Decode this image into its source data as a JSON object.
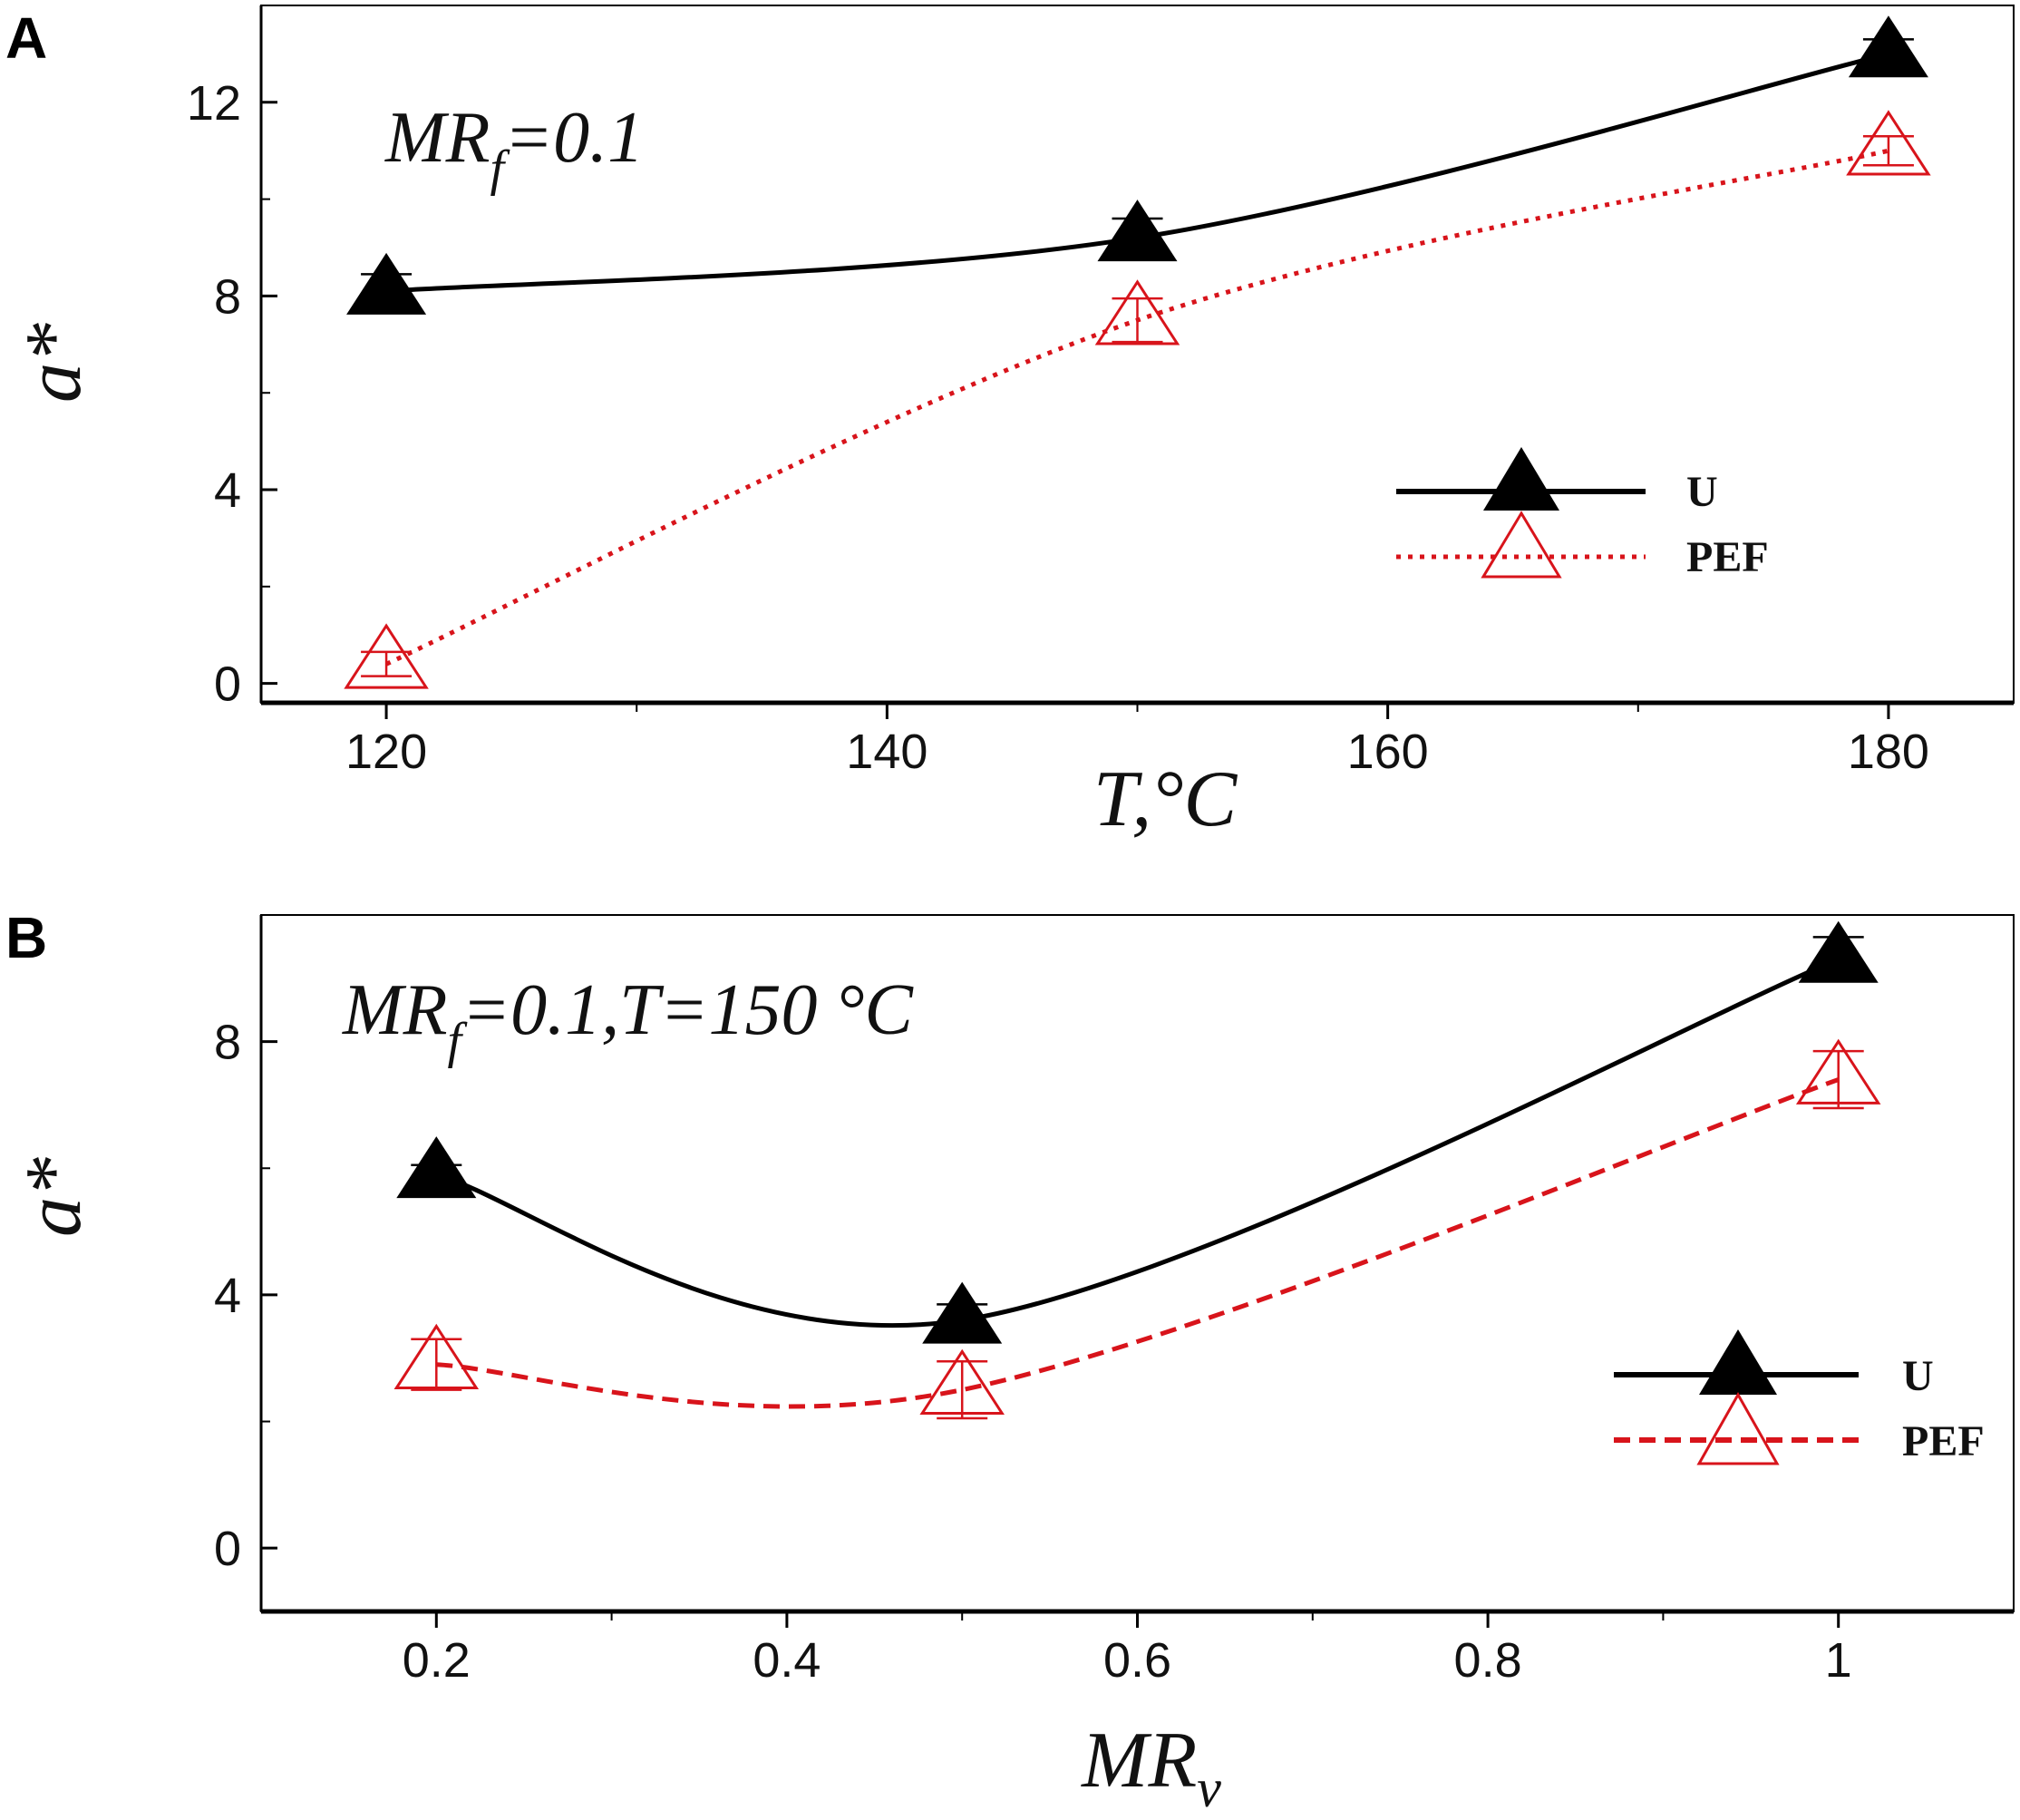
{
  "chart_data": [
    {
      "panel": "A",
      "type": "line",
      "annotation": {
        "main": "MR",
        "sub": "f",
        "rest": "=0.1"
      },
      "xlabel": "T,°C",
      "ylabel": "a*",
      "xlim": [
        115,
        185
      ],
      "ylim": [
        -0.4,
        14
      ],
      "xticks": [
        120,
        140,
        160,
        180
      ],
      "xminor": [
        130,
        150,
        170
      ],
      "yticks": [
        0,
        4,
        8,
        12
      ],
      "yminor": [
        2,
        6,
        10
      ],
      "x": [
        120,
        150,
        180
      ],
      "series": [
        {
          "name": "U",
          "values": [
            8.1,
            9.2,
            13.0
          ],
          "errors": [
            0.35,
            0.4,
            0.3
          ],
          "color": "#000000",
          "marker": "filled-triangle",
          "line": "solid"
        },
        {
          "name": "PEF",
          "values": [
            0.4,
            7.5,
            11.0
          ],
          "errors": [
            0.25,
            0.45,
            0.3
          ],
          "color": "#d8141b",
          "marker": "open-triangle",
          "line": "dotted"
        }
      ],
      "legend": "right-middle"
    },
    {
      "panel": "B",
      "type": "line",
      "annotation": {
        "main": "MR",
        "sub": "f",
        "rest": "=0.1,T=150 °C"
      },
      "xlabel": "MR",
      "xlabel_sub": "v",
      "ylabel": "a*",
      "xlim": [
        0.1,
        1.1
      ],
      "ylim": [
        -1,
        10
      ],
      "xticks": [
        0.2,
        0.4,
        0.6,
        0.8,
        1
      ],
      "xtick_labels": [
        "0.2",
        "0.4",
        "0.6",
        "0.8",
        "1"
      ],
      "xminor": [
        0.3,
        0.5,
        0.7,
        0.9
      ],
      "yticks": [
        0,
        4,
        8
      ],
      "yminor": [
        2,
        6
      ],
      "x": [
        0.2,
        0.5,
        1.0
      ],
      "series": [
        {
          "name": "U",
          "values": [
            5.9,
            3.6,
            9.3
          ],
          "errors": [
            0.15,
            0.25,
            0.35
          ],
          "color": "#000000",
          "marker": "filled-triangle",
          "line": "solid"
        },
        {
          "name": "PEF",
          "values": [
            2.9,
            2.5,
            7.4
          ],
          "errors": [
            0.4,
            0.45,
            0.45
          ],
          "color": "#d8141b",
          "marker": "open-triangle",
          "line": "dashed"
        }
      ],
      "legend": "right-middle"
    }
  ]
}
